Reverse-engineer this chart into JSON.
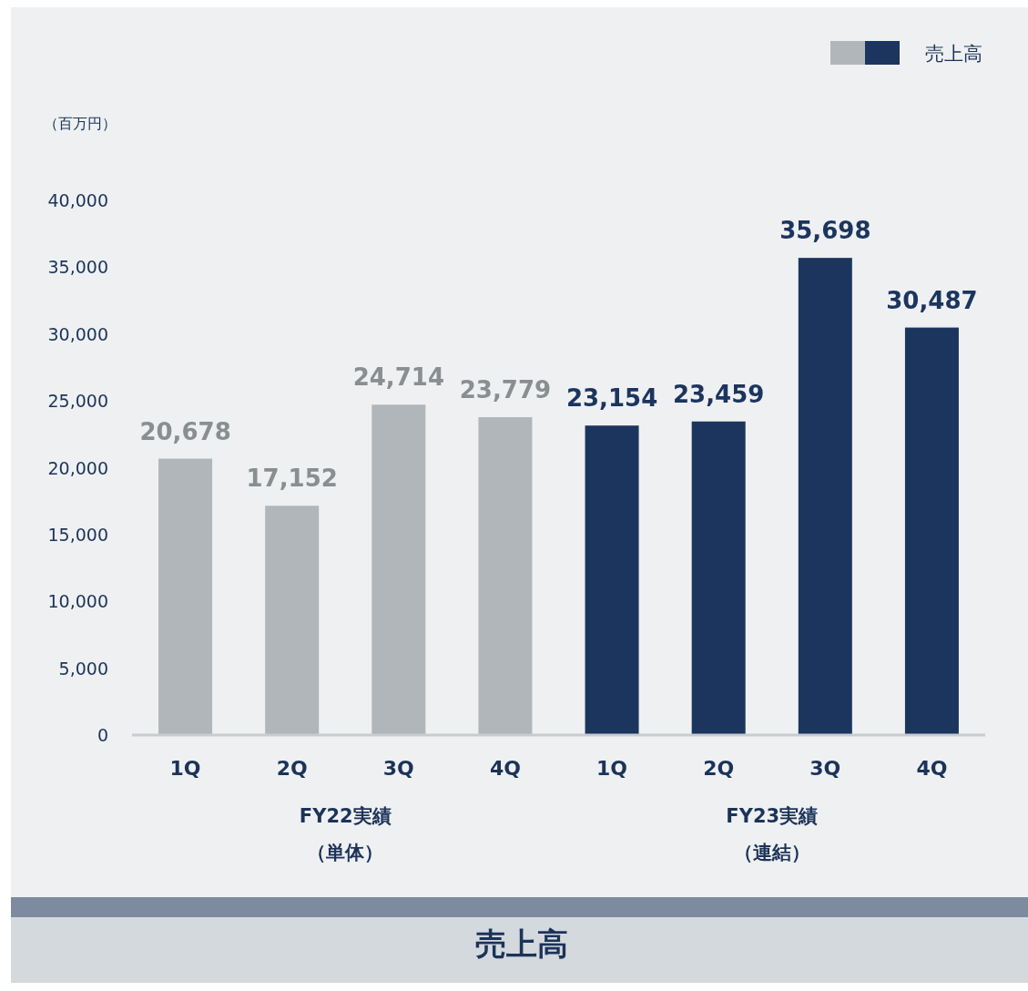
{
  "chart_data": {
    "type": "bar",
    "title": "売上高",
    "ylabel": "（百万円）",
    "categories": [
      "1Q",
      "2Q",
      "3Q",
      "4Q",
      "1Q",
      "2Q",
      "3Q",
      "4Q"
    ],
    "series": [
      {
        "name": "売上高",
        "values": [
          20678,
          17152,
          24714,
          23779,
          23154,
          23459,
          35698,
          30487
        ],
        "value_labels": [
          "20,678",
          "17,152",
          "24,714",
          "23,779",
          "23,154",
          "23,459",
          "35,698",
          "30,487"
        ],
        "colors": [
          "#b0b6b9",
          "#b0b6b9",
          "#b0b6b9",
          "#b0b6b9",
          "#1c355e",
          "#1c355e",
          "#1c355e",
          "#1c355e"
        ]
      }
    ],
    "ylim": [
      0,
      40000
    ],
    "yticks": [
      {
        "value": 0,
        "label": "0"
      },
      {
        "value": 5000,
        "label": "5,000"
      },
      {
        "value": 10000,
        "label": "10,000"
      },
      {
        "value": 15000,
        "label": "15,000"
      },
      {
        "value": 20000,
        "label": "20,000"
      },
      {
        "value": 25000,
        "label": "25,000"
      },
      {
        "value": 30000,
        "label": "30,000"
      },
      {
        "value": 35000,
        "label": "35,000"
      },
      {
        "value": 40000,
        "label": "40,000"
      }
    ],
    "legend": "top right",
    "annotations": [
      "FY22実績",
      "（単体）",
      "FY23実績",
      "（連結）"
    ]
  }
}
